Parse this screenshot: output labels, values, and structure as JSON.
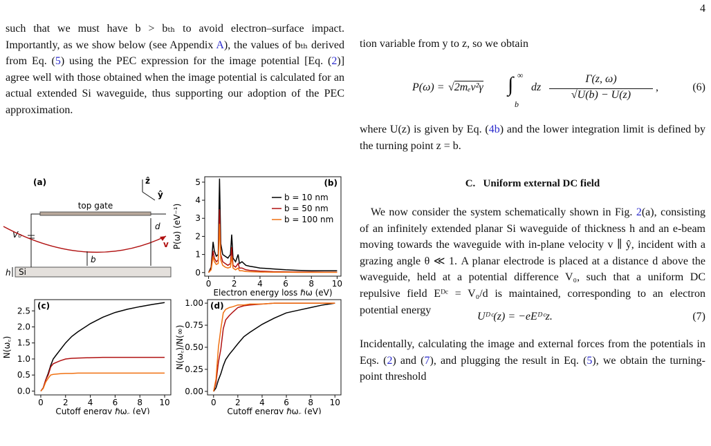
{
  "page_number": "4",
  "left_paragraph": [
    "such that we must have b > bₜₕ to avoid electron–surface impact. Importantly, as we show below (see Appendix ",
    {
      "text": "A",
      "color": "#2a2acc"
    },
    "), the values of bₜₕ derived from Eq. (",
    {
      "text": "5",
      "color": "#2a2acc"
    },
    ") using the PEC expression for the image potential [Eq. (",
    {
      "text": "2",
      "color": "#2a2acc"
    },
    ")] agree well with those obtained when the image potential is calculated for an actual extended Si waveguide, thus supporting our adoption of the PEC approximation."
  ],
  "right_intro": [
    "tion variable from y to z, so we obtain"
  ],
  "equation_6": {
    "lhs": "P(ω) =",
    "sqrt": "2mₑv²γ",
    "integral": "∫",
    "upper": "∞",
    "lower": "b",
    "dz": "dz",
    "numerator": "Γ(z, ω)",
    "denominator": "U(b) − U(z)",
    "end": ",",
    "number": "(6)"
  },
  "right_after_6": [
    "where U(z) is given by Eq. (",
    {
      "text": "4b",
      "color": "#2a2acc"
    },
    ") and the lower integration limit is defined by the turning point z = b."
  ],
  "section_heading": "C.   Uniform external DC field",
  "right_section_paragraph": [
    "We now consider the system schematically shown in Fig. ",
    {
      "text": "2",
      "color": "#2a2acc"
    },
    "(a), consisting of an infinitely extended planar Si waveguide of thickness h and an e-beam moving towards the waveguide with in-plane velocity v ∥ ŷ, incident with a grazing angle θ ≪ 1. A planar electrode is placed at a distance d above the waveguide, held at a potential difference V₀, such that a uniform DC repulsive field Eᴰᶜ = V₀/d is maintained, corresponding to an electron potential energy"
  ],
  "equation_7": {
    "body": "Uᴰᶜ(z) = −eEᴰᶜz.",
    "number": "(7)"
  },
  "right_final": [
    "Incidentally, calculating the image and external forces from the potentials in Eqs. (",
    {
      "text": "2",
      "color": "#2a2acc"
    },
    ") and (",
    {
      "text": "7",
      "color": "#2a2acc"
    },
    "), and plugging the result in Eq. (",
    {
      "text": "5",
      "color": "#2a2acc"
    },
    "), we obtain the turning-point threshold"
  ],
  "diagram": {
    "label": "(a)",
    "top_gate": "top gate",
    "v0": "V₀",
    "d": "d",
    "v": "v",
    "b": "b",
    "h": "h",
    "si": "Si",
    "z_axis": "ẑ",
    "y_axis": "ŷ"
  },
  "chart_data": [
    {
      "type": "line",
      "panel_label": "(b)",
      "xlabel": "Electron energy loss ℏω (eV)",
      "ylabel": "P(ω) (eV⁻¹)",
      "x": [
        0,
        0.2,
        0.35,
        0.45,
        0.6,
        0.75,
        0.85,
        0.95,
        1.1,
        1.3,
        1.5,
        1.7,
        1.8,
        1.9,
        2.1,
        2.3,
        2.4,
        2.6,
        2.9,
        3.2,
        3.6,
        4,
        5,
        6,
        7,
        8,
        9,
        10
      ],
      "series": [
        {
          "name": "b = 10 nm",
          "color": "#000000",
          "values": [
            0,
            0.3,
            1.7,
            1.2,
            0.9,
            1.0,
            5.2,
            1.6,
            1.0,
            0.9,
            0.8,
            1.0,
            2.1,
            0.8,
            0.6,
            1.0,
            0.5,
            0.6,
            0.4,
            0.35,
            0.3,
            0.25,
            0.2,
            0.15,
            0.12,
            0.1,
            0.1,
            0.1
          ]
        },
        {
          "name": "b = 50 nm",
          "color": "#b01010",
          "values": [
            0,
            0.2,
            1.2,
            0.8,
            0.6,
            0.7,
            3.5,
            1.0,
            0.6,
            0.5,
            0.4,
            0.5,
            1.4,
            0.4,
            0.3,
            0.5,
            0.25,
            0.25,
            0.15,
            0.12,
            0.1,
            0.08,
            0.05,
            0.04,
            0.03,
            0.03,
            0.02,
            0.02
          ]
        },
        {
          "name": "b = 100 nm",
          "color": "#f07010",
          "values": [
            0,
            0.15,
            0.9,
            0.6,
            0.45,
            0.5,
            2.7,
            0.7,
            0.4,
            0.3,
            0.25,
            0.3,
            0.9,
            0.25,
            0.15,
            0.25,
            0.1,
            0.1,
            0.06,
            0.05,
            0.04,
            0.03,
            0.02,
            0.02,
            0.01,
            0.01,
            0.01,
            0.01
          ]
        }
      ],
      "xlim": [
        -0.3,
        10.3
      ],
      "ylim": [
        -0.2,
        5.3
      ],
      "xticks": [
        0,
        2,
        4,
        6,
        8,
        10
      ],
      "yticks": [
        0,
        1,
        2,
        3,
        4,
        5
      ],
      "legend": "upper right"
    },
    {
      "type": "line",
      "panel_label": "(c)",
      "xlabel": "Cutoff energy ℏω꜀ (eV)",
      "ylabel": "N(ω꜀)",
      "x": [
        0,
        0.2,
        0.4,
        0.6,
        0.8,
        1,
        1.3,
        1.6,
        2,
        2.5,
        3,
        4,
        5,
        6,
        7,
        8,
        9,
        10
      ],
      "series": [
        {
          "name": "b = 10 nm",
          "color": "#000000",
          "values": [
            0,
            0.1,
            0.35,
            0.55,
            0.8,
            1.0,
            1.15,
            1.3,
            1.5,
            1.7,
            1.85,
            2.1,
            2.3,
            2.45,
            2.55,
            2.63,
            2.7,
            2.76
          ]
        },
        {
          "name": "b = 50 nm",
          "color": "#b01010",
          "values": [
            0,
            0.1,
            0.35,
            0.5,
            0.75,
            0.85,
            0.9,
            0.95,
            1.0,
            1.02,
            1.03,
            1.04,
            1.05,
            1.05,
            1.05,
            1.05,
            1.05,
            1.05
          ]
        },
        {
          "name": "b = 100 nm",
          "color": "#f07010",
          "values": [
            0,
            0.08,
            0.28,
            0.4,
            0.5,
            0.52,
            0.53,
            0.54,
            0.55,
            0.55,
            0.56,
            0.56,
            0.56,
            0.56,
            0.56,
            0.56,
            0.56,
            0.56
          ]
        }
      ],
      "xlim": [
        -0.5,
        10.5
      ],
      "ylim": [
        -0.12,
        2.85
      ],
      "xticks": [
        0,
        2,
        4,
        6,
        8,
        10
      ],
      "yticks": [
        {
          "value": 0,
          "label": "0.0"
        },
        {
          "value": 0.5,
          "label": "0.5"
        },
        {
          "value": 1,
          "label": "1.0"
        },
        {
          "value": 1.5,
          "label": "1.5"
        },
        {
          "value": 2,
          "label": "2.0"
        },
        {
          "value": 2.5,
          "label": "2.5"
        }
      ]
    },
    {
      "type": "line",
      "panel_label": "(d)",
      "xlabel": "Cutoff energy ℏω꜀ (eV)",
      "ylabel": "N(ω꜀)/N(∞)",
      "x": [
        0,
        0.2,
        0.4,
        0.6,
        0.8,
        1,
        1.3,
        1.6,
        2,
        2.5,
        3,
        4,
        5,
        6,
        7,
        8,
        9,
        10
      ],
      "series": [
        {
          "name": "b = 10 nm",
          "color": "#000000",
          "values": [
            0,
            0.04,
            0.13,
            0.2,
            0.29,
            0.36,
            0.42,
            0.47,
            0.54,
            0.62,
            0.67,
            0.76,
            0.83,
            0.89,
            0.92,
            0.95,
            0.98,
            1.0
          ]
        },
        {
          "name": "b = 50 nm",
          "color": "#b01010",
          "values": [
            0,
            0.1,
            0.33,
            0.48,
            0.71,
            0.81,
            0.86,
            0.9,
            0.95,
            0.97,
            0.98,
            0.99,
            1.0,
            1.0,
            1.0,
            1.0,
            1.0,
            1.0
          ]
        },
        {
          "name": "b = 100 nm",
          "color": "#f07010",
          "values": [
            0,
            0.14,
            0.5,
            0.71,
            0.89,
            0.93,
            0.95,
            0.96,
            0.98,
            0.98,
            0.99,
            0.99,
            1.0,
            1.0,
            1.0,
            1.0,
            1.0,
            1.0
          ]
        }
      ],
      "xlim": [
        -0.5,
        10.5
      ],
      "ylim": [
        -0.04,
        1.04
      ],
      "xticks": [
        0,
        2,
        4,
        6,
        8,
        10
      ],
      "yticks": [
        {
          "value": 0,
          "label": "0.00"
        },
        {
          "value": 0.25,
          "label": "0.25"
        },
        {
          "value": 0.5,
          "label": "0.50"
        },
        {
          "value": 0.75,
          "label": "0.75"
        },
        {
          "value": 1,
          "label": "1.00"
        }
      ]
    }
  ]
}
